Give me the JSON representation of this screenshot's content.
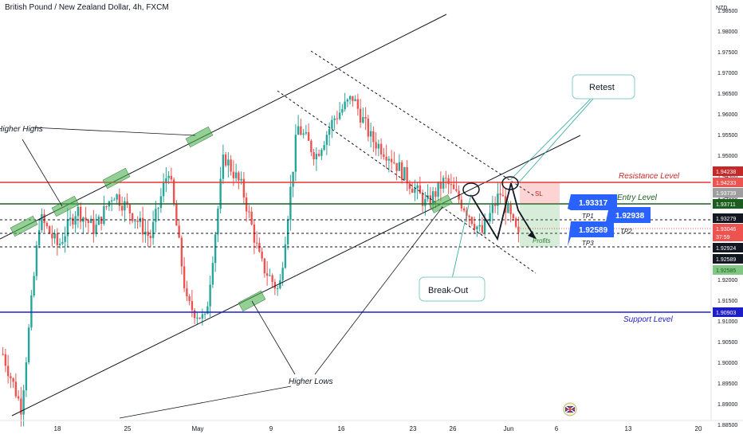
{
  "header": {
    "title": "British Pound / New Zealand Dollar, 4h, FXCM"
  },
  "axis": {
    "currency": "NZD",
    "y_ticks": [
      "1.98500",
      "1.98000",
      "1.97500",
      "1.97000",
      "1.96500",
      "1.96000",
      "1.95500",
      "1.95000",
      "1.94500",
      "1.94000",
      "1.93500",
      "1.93000",
      "1.92500",
      "1.92000",
      "1.91500",
      "1.91000",
      "1.90500",
      "1.90000",
      "1.89500",
      "1.89000",
      "1.88500"
    ],
    "x_ticks": [
      "18",
      "25",
      "May",
      "9",
      "16",
      "23",
      "26",
      "Jun",
      "6",
      "13",
      "20"
    ]
  },
  "price_tags": [
    {
      "text": "1.94238",
      "bg": "#c62828",
      "fg": "#ffffff"
    },
    {
      "text": "1.94233",
      "bg": "#ef5350",
      "fg": "#ffffff"
    },
    {
      "text": "1.93739",
      "bg": "#9e9e9e",
      "fg": "#ffffff"
    },
    {
      "text": "1.93711",
      "bg": "#1b5e20",
      "fg": "#ffffff"
    },
    {
      "text": "1.93279",
      "bg": "#131722",
      "fg": "#ffffff"
    },
    {
      "text": "1.93046",
      "bg": "#ef5350",
      "fg": "#ffffff"
    },
    {
      "text": "37:59",
      "bg": "#ef5350",
      "fg": "#ffffff"
    },
    {
      "text": "1.92924",
      "bg": "#131722",
      "fg": "#ffffff"
    },
    {
      "text": "1.92589",
      "bg": "#131722",
      "fg": "#ffffff"
    },
    {
      "text": "1.92585",
      "bg": "#81c784",
      "fg": "#1b5e20"
    },
    {
      "text": "1.90903",
      "bg": "#1e1ec8",
      "fg": "#ffffff"
    }
  ],
  "annotations": {
    "resistance": "Resistance Level",
    "support": "Support Level",
    "entry": "Entry Level",
    "sl": "SL",
    "profits": "Profits",
    "tp1": "TP1",
    "tp2": "TP2",
    "tp3": "TP3",
    "retest": "Retest",
    "breakout": "Break-Out",
    "higher_highs": "Higher Highs",
    "higher_lows": "Higher Lows",
    "box_1": "1.93317",
    "box_2": "1.92938",
    "box_3": "1.92589"
  },
  "colors": {
    "up": "#26a69a",
    "down": "#ef5350",
    "resistance": "#e53935",
    "support": "#1e1ec8",
    "entry": "#1b5e20",
    "callout": "#2962ff"
  },
  "chart_data": {
    "type": "candlestick",
    "title": "British Pound / New Zealand Dollar, 4h, FXCM",
    "xlabel": "",
    "ylabel": "NZD",
    "ylim": [
      1.8825,
      1.9875
    ],
    "levels": {
      "resistance": 1.94233,
      "entry": 1.93711,
      "support": 1.90903,
      "tp1": 1.93279,
      "tp2": 1.92924,
      "tp3": 1.92589,
      "last": 1.93046
    },
    "series": [
      {
        "name": "price_path_approx",
        "x": [
          "Apr 11",
          "Apr 12",
          "Apr 13",
          "Apr 14",
          "Apr 15",
          "Apr 18",
          "Apr 19",
          "Apr 20",
          "Apr 22",
          "Apr 25",
          "Apr 26",
          "Apr 28",
          "May 2",
          "May 3",
          "May 5",
          "May 6",
          "May 9",
          "May 11",
          "May 13",
          "May 16",
          "May 18",
          "May 20",
          "May 23",
          "May 25",
          "May 26",
          "May 27",
          "May 30",
          "May 31",
          "Jun 1"
        ],
        "values": [
          1.902,
          1.889,
          1.935,
          1.928,
          1.937,
          1.932,
          1.941,
          1.936,
          1.93,
          1.947,
          1.914,
          1.91,
          1.95,
          1.942,
          1.924,
          1.917,
          1.957,
          1.95,
          1.959,
          1.964,
          1.954,
          1.95,
          1.944,
          1.938,
          1.944,
          1.938,
          1.931,
          1.941,
          1.93
        ]
      }
    ]
  }
}
